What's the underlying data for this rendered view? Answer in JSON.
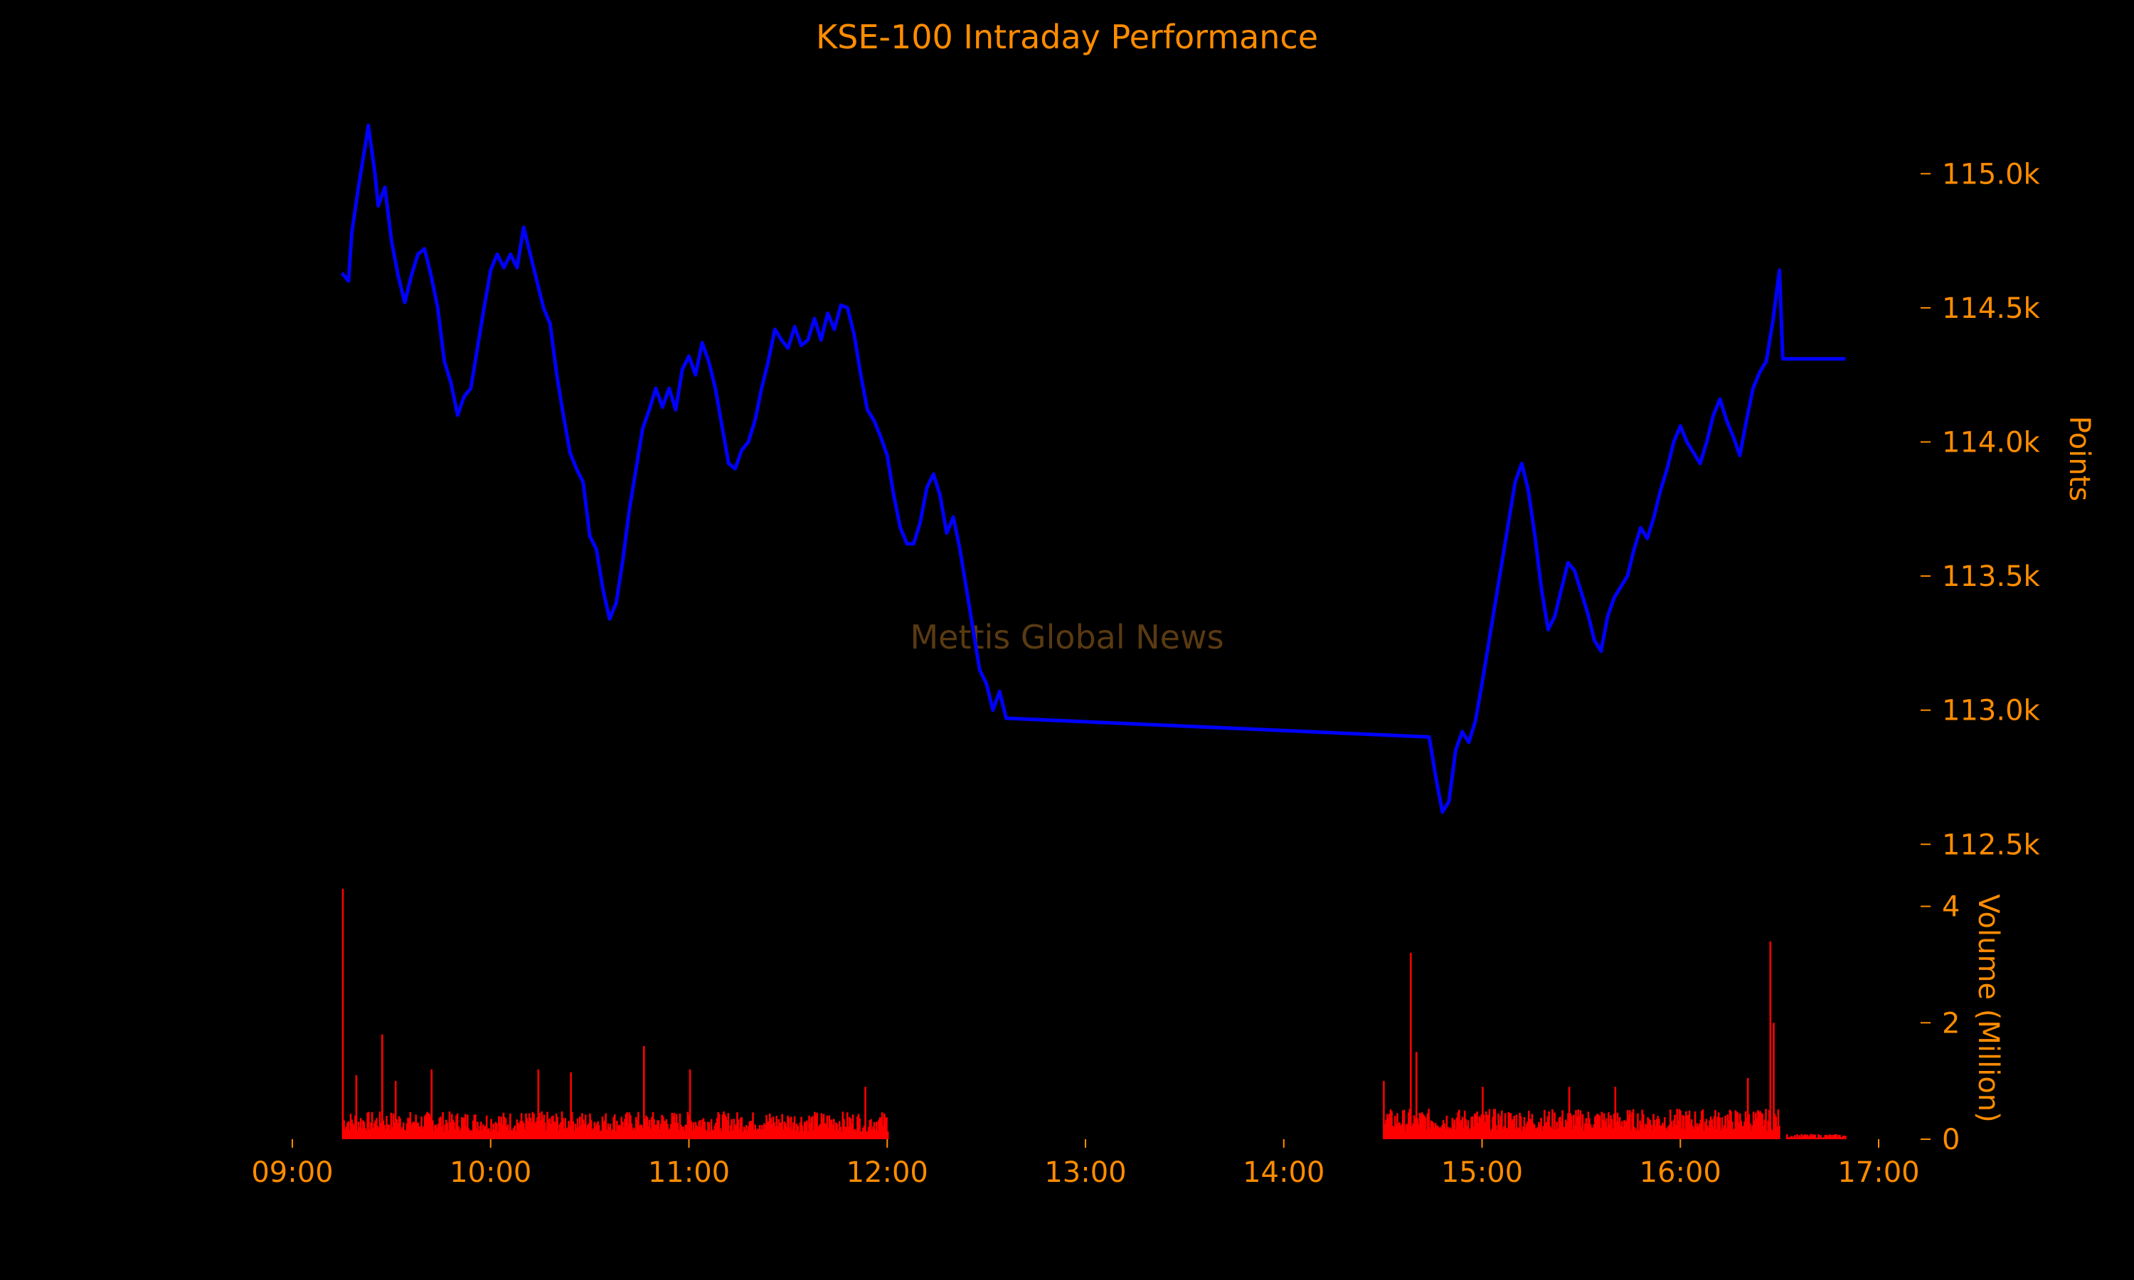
{
  "chart_data": {
    "type": "line",
    "title": "KSE-100 Intraday Performance",
    "watermark": "Mettis Global News",
    "x_axis": {
      "ticks": [
        "09:00",
        "10:00",
        "11:00",
        "12:00",
        "13:00",
        "14:00",
        "15:00",
        "16:00",
        "17:00"
      ],
      "range": [
        "09:00",
        "17:00"
      ]
    },
    "price_axis": {
      "label": "Points",
      "ticks": [
        "112.5k",
        "113.0k",
        "113.5k",
        "114.0k",
        "114.5k",
        "115.0k"
      ],
      "tick_values": [
        112500,
        113000,
        113500,
        114000,
        114500,
        115000
      ],
      "range": [
        112400,
        115250
      ]
    },
    "volume_axis": {
      "label": "Volume (Million)",
      "ticks": [
        "0",
        "2",
        "4"
      ],
      "tick_values": [
        0,
        2,
        4
      ],
      "range": [
        0,
        4.3
      ]
    },
    "series": [
      {
        "kind": "price",
        "color": "#0000ff",
        "points": [
          [
            "09:15",
            114630
          ],
          [
            "09:17",
            114600
          ],
          [
            "09:18",
            114780
          ],
          [
            "09:20",
            114950
          ],
          [
            "09:22",
            115100
          ],
          [
            "09:23",
            115180
          ],
          [
            "09:25",
            115000
          ],
          [
            "09:26",
            114880
          ],
          [
            "09:28",
            114950
          ],
          [
            "09:30",
            114750
          ],
          [
            "09:32",
            114620
          ],
          [
            "09:34",
            114520
          ],
          [
            "09:36",
            114620
          ],
          [
            "09:38",
            114700
          ],
          [
            "09:40",
            114720
          ],
          [
            "09:42",
            114620
          ],
          [
            "09:44",
            114500
          ],
          [
            "09:46",
            114300
          ],
          [
            "09:48",
            114220
          ],
          [
            "09:50",
            114100
          ],
          [
            "09:52",
            114170
          ],
          [
            "09:54",
            114200
          ],
          [
            "09:56",
            114350
          ],
          [
            "09:58",
            114500
          ],
          [
            "10:00",
            114640
          ],
          [
            "10:02",
            114700
          ],
          [
            "10:04",
            114650
          ],
          [
            "10:06",
            114700
          ],
          [
            "10:08",
            114650
          ],
          [
            "10:10",
            114800
          ],
          [
            "10:12",
            114700
          ],
          [
            "10:14",
            114600
          ],
          [
            "10:16",
            114500
          ],
          [
            "10:18",
            114440
          ],
          [
            "10:20",
            114250
          ],
          [
            "10:22",
            114100
          ],
          [
            "10:24",
            113960
          ],
          [
            "10:26",
            113900
          ],
          [
            "10:28",
            113850
          ],
          [
            "10:30",
            113650
          ],
          [
            "10:32",
            113600
          ],
          [
            "10:34",
            113450
          ],
          [
            "10:36",
            113340
          ],
          [
            "10:38",
            113400
          ],
          [
            "10:40",
            113560
          ],
          [
            "10:42",
            113750
          ],
          [
            "10:44",
            113900
          ],
          [
            "10:46",
            114050
          ],
          [
            "10:48",
            114120
          ],
          [
            "10:50",
            114200
          ],
          [
            "10:52",
            114130
          ],
          [
            "10:54",
            114200
          ],
          [
            "10:56",
            114120
          ],
          [
            "10:58",
            114270
          ],
          [
            "11:00",
            114320
          ],
          [
            "11:02",
            114250
          ],
          [
            "11:04",
            114370
          ],
          [
            "11:06",
            114300
          ],
          [
            "11:08",
            114200
          ],
          [
            "11:10",
            114060
          ],
          [
            "11:12",
            113920
          ],
          [
            "11:14",
            113900
          ],
          [
            "11:16",
            113970
          ],
          [
            "11:18",
            114000
          ],
          [
            "11:20",
            114080
          ],
          [
            "11:22",
            114200
          ],
          [
            "11:24",
            114300
          ],
          [
            "11:26",
            114420
          ],
          [
            "11:28",
            114380
          ],
          [
            "11:30",
            114350
          ],
          [
            "11:32",
            114430
          ],
          [
            "11:34",
            114360
          ],
          [
            "11:36",
            114380
          ],
          [
            "11:38",
            114460
          ],
          [
            "11:40",
            114380
          ],
          [
            "11:42",
            114480
          ],
          [
            "11:44",
            114420
          ],
          [
            "11:46",
            114510
          ],
          [
            "11:48",
            114500
          ],
          [
            "11:50",
            114400
          ],
          [
            "11:52",
            114250
          ],
          [
            "11:54",
            114120
          ],
          [
            "11:56",
            114080
          ],
          [
            "11:58",
            114020
          ],
          [
            "12:00",
            113950
          ],
          [
            "12:02",
            113800
          ],
          [
            "12:04",
            113680
          ],
          [
            "12:06",
            113620
          ],
          [
            "12:08",
            113620
          ],
          [
            "12:10",
            113700
          ],
          [
            "12:12",
            113830
          ],
          [
            "12:14",
            113880
          ],
          [
            "12:16",
            113800
          ],
          [
            "12:18",
            113660
          ],
          [
            "12:20",
            113720
          ],
          [
            "12:22",
            113600
          ],
          [
            "12:24",
            113450
          ],
          [
            "12:26",
            113300
          ],
          [
            "12:28",
            113150
          ],
          [
            "12:30",
            113100
          ],
          [
            "12:32",
            113000
          ],
          [
            "12:34",
            113070
          ],
          [
            "12:36",
            112970
          ],
          [
            "14:44",
            112900
          ],
          [
            "14:46",
            112750
          ],
          [
            "14:48",
            112620
          ],
          [
            "14:50",
            112660
          ],
          [
            "14:52",
            112850
          ],
          [
            "14:54",
            112920
          ],
          [
            "14:56",
            112880
          ],
          [
            "14:58",
            112960
          ],
          [
            "15:00",
            113100
          ],
          [
            "15:02",
            113250
          ],
          [
            "15:04",
            113400
          ],
          [
            "15:06",
            113550
          ],
          [
            "15:08",
            113700
          ],
          [
            "15:10",
            113850
          ],
          [
            "15:12",
            113920
          ],
          [
            "15:14",
            113820
          ],
          [
            "15:16",
            113650
          ],
          [
            "15:18",
            113450
          ],
          [
            "15:20",
            113300
          ],
          [
            "15:22",
            113350
          ],
          [
            "15:24",
            113450
          ],
          [
            "15:26",
            113550
          ],
          [
            "15:28",
            113520
          ],
          [
            "15:30",
            113440
          ],
          [
            "15:32",
            113360
          ],
          [
            "15:34",
            113260
          ],
          [
            "15:36",
            113220
          ],
          [
            "15:38",
            113350
          ],
          [
            "15:40",
            113420
          ],
          [
            "15:42",
            113460
          ],
          [
            "15:44",
            113500
          ],
          [
            "15:46",
            113600
          ],
          [
            "15:48",
            113680
          ],
          [
            "15:50",
            113640
          ],
          [
            "15:52",
            113720
          ],
          [
            "15:54",
            113820
          ],
          [
            "15:56",
            113900
          ],
          [
            "15:58",
            114000
          ],
          [
            "16:00",
            114060
          ],
          [
            "16:02",
            114000
          ],
          [
            "16:04",
            113960
          ],
          [
            "16:06",
            113920
          ],
          [
            "16:08",
            114000
          ],
          [
            "16:10",
            114100
          ],
          [
            "16:12",
            114160
          ],
          [
            "16:14",
            114080
          ],
          [
            "16:16",
            114020
          ],
          [
            "16:18",
            113950
          ],
          [
            "16:20",
            114080
          ],
          [
            "16:22",
            114200
          ],
          [
            "16:24",
            114260
          ],
          [
            "16:26",
            114300
          ],
          [
            "16:28",
            114450
          ],
          [
            "16:30",
            114640
          ],
          [
            "16:31",
            114310
          ],
          [
            "16:35",
            114310
          ],
          [
            "16:40",
            114310
          ],
          [
            "16:50",
            114310
          ]
        ]
      },
      {
        "kind": "volume",
        "color": "#ff0000",
        "sessions": [
          {
            "start": "09:15",
            "end": "12:00",
            "base": 0.32,
            "spikes": [
              [
                "09:15",
                4.3
              ],
              [
                "09:19",
                1.1
              ],
              [
                "09:27",
                1.8
              ],
              [
                "09:31",
                1.0
              ],
              [
                "09:42",
                1.2
              ],
              [
                "10:14",
                1.2
              ],
              [
                "10:24",
                1.15
              ],
              [
                "10:46",
                1.6
              ],
              [
                "11:00",
                1.2
              ],
              [
                "11:53",
                0.9
              ]
            ]
          },
          {
            "start": "14:30",
            "end": "16:30",
            "base": 0.35,
            "spikes": [
              [
                "14:30",
                1.0
              ],
              [
                "14:38",
                3.2
              ],
              [
                "14:40",
                1.5
              ],
              [
                "15:00",
                0.9
              ],
              [
                "15:26",
                0.9
              ],
              [
                "15:40",
                0.9
              ],
              [
                "16:20",
                1.05
              ],
              [
                "16:27",
                3.4
              ],
              [
                "16:28",
                2.0
              ],
              [
                "16:30",
                1.5
              ]
            ]
          },
          {
            "start": "16:32",
            "end": "16:50",
            "base": 0.06,
            "spikes": []
          }
        ]
      }
    ],
    "grid": false,
    "legend": "none"
  }
}
